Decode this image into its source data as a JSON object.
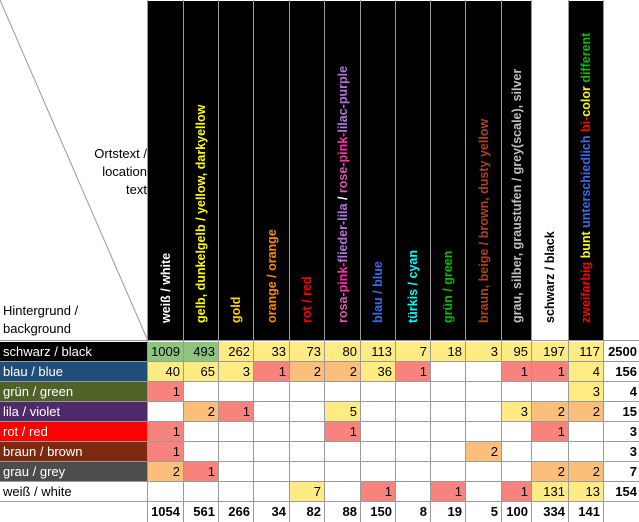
{
  "corner": {
    "top_lines": [
      "Ortstext /",
      "location",
      "text"
    ],
    "bottom_lines": [
      "Hintergrund /",
      "background"
    ]
  },
  "columns": [
    {
      "header_bg": "#000000",
      "segments": [
        {
          "text": "weiß / white",
          "color": "#ffffff"
        }
      ]
    },
    {
      "header_bg": "#000000",
      "segments": [
        {
          "text": "gelb, dunkelgelb / yellow, darkyellow",
          "color": "#ffff00"
        }
      ]
    },
    {
      "header_bg": "#000000",
      "segments": [
        {
          "text": "gold",
          "color": "#ffd700"
        }
      ]
    },
    {
      "header_bg": "#000000",
      "segments": [
        {
          "text": "orange / orange",
          "color": "#ff8c00"
        }
      ]
    },
    {
      "header_bg": "#000000",
      "segments": [
        {
          "text": "rot / red",
          "color": "#ff0000"
        }
      ]
    },
    {
      "header_bg": "#000000",
      "segments": [
        {
          "text": "rosa-",
          "color": "#e05ab8"
        },
        {
          "text": "pink-",
          "color": "#ff2fb0"
        },
        {
          "text": "flieder-lila",
          "color": "#b673e0"
        },
        {
          "text": " / ",
          "color": "#ffffff"
        },
        {
          "text": "rose-",
          "color": "#e05ab8"
        },
        {
          "text": "pink-",
          "color": "#ff2fb0"
        },
        {
          "text": "lilac-purple",
          "color": "#b673e0"
        }
      ]
    },
    {
      "header_bg": "#000000",
      "segments": [
        {
          "text": "blau / blue",
          "color": "#3a6cf0"
        }
      ]
    },
    {
      "header_bg": "#000000",
      "segments": [
        {
          "text": "türkis / cyan",
          "color": "#00ffff"
        }
      ]
    },
    {
      "header_bg": "#000000",
      "segments": [
        {
          "text": "grün / green",
          "color": "#00c000"
        }
      ]
    },
    {
      "header_bg": "#000000",
      "segments": [
        {
          "text": "braun, beige / brown, dusty yellow",
          "color": "#b0421a"
        }
      ]
    },
    {
      "header_bg": "#000000",
      "segments": [
        {
          "text": "grau, silber, graustufen / grey(scale), silver",
          "color": "#c0c0c0"
        }
      ]
    },
    {
      "header_bg": "#ffffff",
      "segments": [
        {
          "text": "schwarz / black",
          "color": "#000000"
        }
      ]
    },
    {
      "header_bg": "#000000",
      "segments": [
        {
          "text": "zweifarbig ",
          "color": "#ff0000"
        },
        {
          "text": "bunt ",
          "color": "#ffff00"
        },
        {
          "text": "unterschiedlich ",
          "color": "#3a6cf0"
        },
        {
          "text": "bi-",
          "color": "#ff0000"
        },
        {
          "text": "color ",
          "color": "#ffff00"
        },
        {
          "text": "different",
          "color": "#00c000"
        }
      ]
    }
  ],
  "rows": [
    {
      "label": "schwarz / black",
      "bg": "#000000",
      "fg": "#ffffff",
      "cells": [
        "1009",
        "493",
        "262",
        "33",
        "73",
        "80",
        "113",
        "7",
        "18",
        "3",
        "95",
        "197",
        "117"
      ],
      "total": "2500"
    },
    {
      "label": "blau / blue",
      "bg": "#1f4e79",
      "fg": "#ffffff",
      "cells": [
        "40",
        "65",
        "3",
        "1",
        "2",
        "2",
        "36",
        "1",
        "",
        "",
        "1",
        "1",
        "4"
      ],
      "total": "156"
    },
    {
      "label": "grün / green",
      "bg": "#4f6228",
      "fg": "#ffffff",
      "cells": [
        "1",
        "",
        "",
        "",
        "",
        "",
        "",
        "",
        "",
        "",
        "",
        "",
        "3"
      ],
      "total": "4"
    },
    {
      "label": "lila / violet",
      "bg": "#4f2a6b",
      "fg": "#ffffff",
      "cells": [
        "",
        "2",
        "1",
        "",
        "",
        "5",
        "",
        "",
        "",
        "",
        "3",
        "2",
        "2"
      ],
      "total": "15"
    },
    {
      "label": "rot / red",
      "bg": "#ff0000",
      "fg": "#ffffff",
      "cells": [
        "1",
        "",
        "",
        "",
        "",
        "1",
        "",
        "",
        "",
        "",
        "",
        "1",
        ""
      ],
      "total": "3"
    },
    {
      "label": "braun / brown",
      "bg": "#7f2a10",
      "fg": "#ffffff",
      "cells": [
        "1",
        "",
        "",
        "",
        "",
        "",
        "",
        "",
        "",
        "2",
        "",
        "",
        ""
      ],
      "total": "3"
    },
    {
      "label": "grau / grey",
      "bg": "#4d4d4d",
      "fg": "#ffffff",
      "cells": [
        "2",
        "1",
        "",
        "",
        "",
        "",
        "",
        "",
        "",
        "",
        "",
        "2",
        "2"
      ],
      "total": "7"
    },
    {
      "label": "weiß / white",
      "bg": "#ffffff",
      "fg": "#000000",
      "cells": [
        "",
        "",
        "",
        "",
        "7",
        "",
        "1",
        "",
        "1",
        "",
        "1",
        "131",
        "13"
      ],
      "total": "154"
    }
  ],
  "column_totals": [
    "1054",
    "561",
    "266",
    "34",
    "82",
    "88",
    "150",
    "8",
    "19",
    "5",
    "100",
    "334",
    "141"
  ],
  "heat_colors": {
    "green": "#8dc47e",
    "yellow": "#ffeb84",
    "orange": "#fcbf7b",
    "red": "#f8837c"
  }
}
